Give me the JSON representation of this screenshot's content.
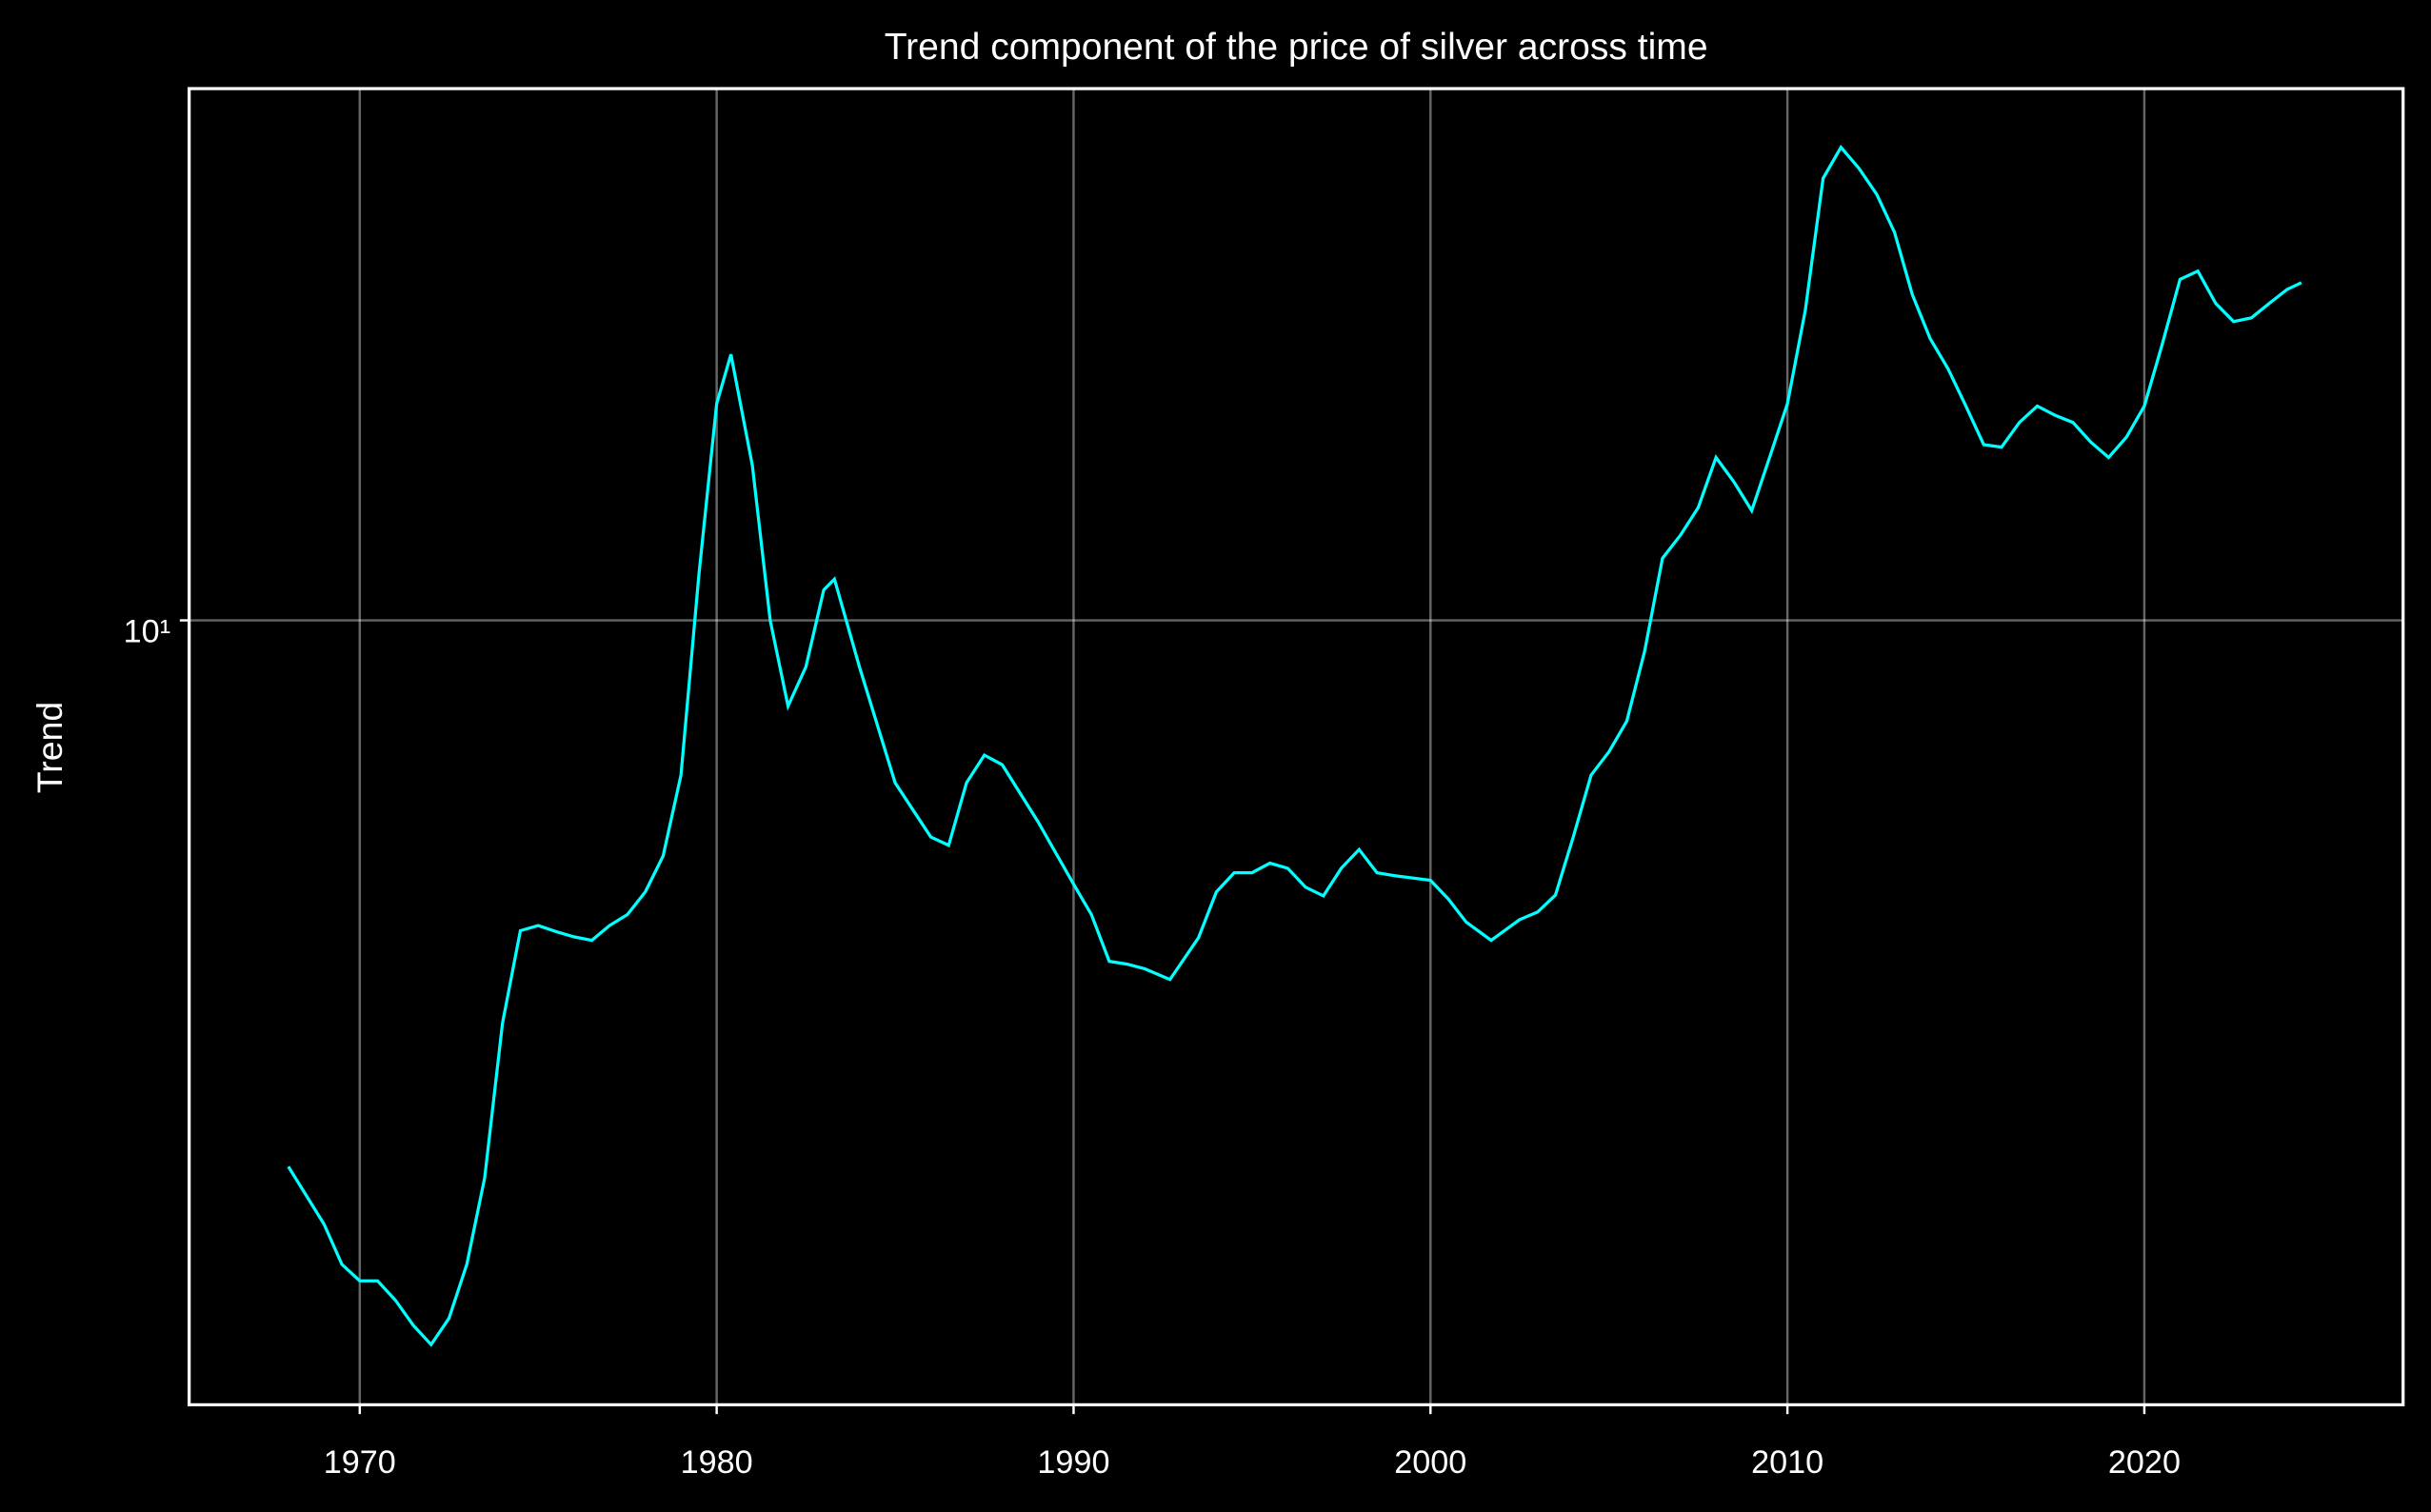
{
  "chart_data": {
    "type": "line",
    "title": "Trend component of the price of silver across time",
    "ylabel": "Trend",
    "x": [
      1968.0,
      1969.0,
      1969.5,
      1970.0,
      1970.5,
      1971.0,
      1971.5,
      1972.0,
      1972.5,
      1973.0,
      1973.5,
      1974.0,
      1974.5,
      1975.0,
      1975.5,
      1976.0,
      1976.5,
      1977.0,
      1977.5,
      1978.0,
      1978.5,
      1979.0,
      1979.5,
      1980.0,
      1980.4,
      1981.0,
      1981.5,
      1982.0,
      1982.5,
      1983.0,
      1983.3,
      1984.0,
      1985.0,
      1986.0,
      1986.5,
      1987.0,
      1987.5,
      1988.0,
      1989.0,
      1990.0,
      1990.5,
      1991.0,
      1991.5,
      1992.0,
      1992.7,
      1993.5,
      1994.0,
      1994.5,
      1995.0,
      1995.5,
      1996.0,
      1996.5,
      1997.0,
      1997.5,
      1998.0,
      1998.5,
      1999.0,
      2000.0,
      2000.5,
      2001.0,
      2001.7,
      2002.5,
      2003.0,
      2003.5,
      2004.0,
      2004.5,
      2005.0,
      2005.5,
      2006.0,
      2006.5,
      2007.0,
      2007.5,
      2008.0,
      2008.5,
      2009.0,
      2009.5,
      2010.0,
      2010.5,
      2011.0,
      2011.5,
      2012.0,
      2012.5,
      2013.0,
      2013.5,
      2014.0,
      2014.5,
      2015.0,
      2015.5,
      2016.0,
      2016.5,
      2017.0,
      2017.5,
      2018.0,
      2018.5,
      2019.0,
      2019.5,
      2020.0,
      2020.5,
      2021.0,
      2021.5,
      2022.0,
      2022.5,
      2023.0,
      2023.5,
      2024.0,
      2024.4
    ],
    "series": [
      {
        "name": "Trend",
        "color": "#00ffff",
        "values": [
          2.51,
          2.17,
          1.96,
          1.88,
          1.88,
          1.79,
          1.68,
          1.6,
          1.71,
          1.96,
          2.44,
          3.61,
          4.56,
          4.62,
          4.55,
          4.49,
          4.45,
          4.62,
          4.75,
          5.03,
          5.51,
          6.76,
          11.2,
          17.3,
          19.6,
          14.8,
          10.0,
          8.05,
          8.89,
          10.8,
          11.1,
          8.89,
          6.63,
          5.78,
          5.66,
          6.63,
          7.11,
          6.94,
          6.01,
          5.13,
          4.75,
          4.22,
          4.19,
          4.14,
          4.03,
          4.48,
          5.03,
          5.28,
          5.28,
          5.41,
          5.34,
          5.09,
          4.98,
          5.34,
          5.6,
          5.28,
          5.24,
          5.18,
          4.94,
          4.66,
          4.45,
          4.69,
          4.78,
          4.99,
          5.78,
          6.76,
          7.17,
          7.75,
          9.25,
          11.7,
          12.4,
          13.3,
          15.1,
          14.2,
          13.2,
          15.1,
          17.3,
          21.9,
          30.6,
          33.1,
          31.4,
          29.4,
          26.7,
          22.8,
          20.4,
          18.9,
          17.2,
          15.6,
          15.5,
          16.5,
          17.2,
          16.8,
          16.5,
          15.7,
          15.1,
          15.9,
          17.2,
          20.1,
          23.7,
          24.2,
          22.3,
          21.3,
          21.5,
          22.3,
          23.1,
          23.5
        ]
      }
    ],
    "xlim": [
      1965.22,
      2027.25
    ],
    "xticks": [
      1970,
      1980,
      1990,
      2000,
      2010,
      2020
    ],
    "ylim": [
      1.374,
      38.4
    ],
    "yticks": [
      {
        "value": 10,
        "label": "10¹"
      }
    ],
    "log_y": true,
    "grid": true
  }
}
